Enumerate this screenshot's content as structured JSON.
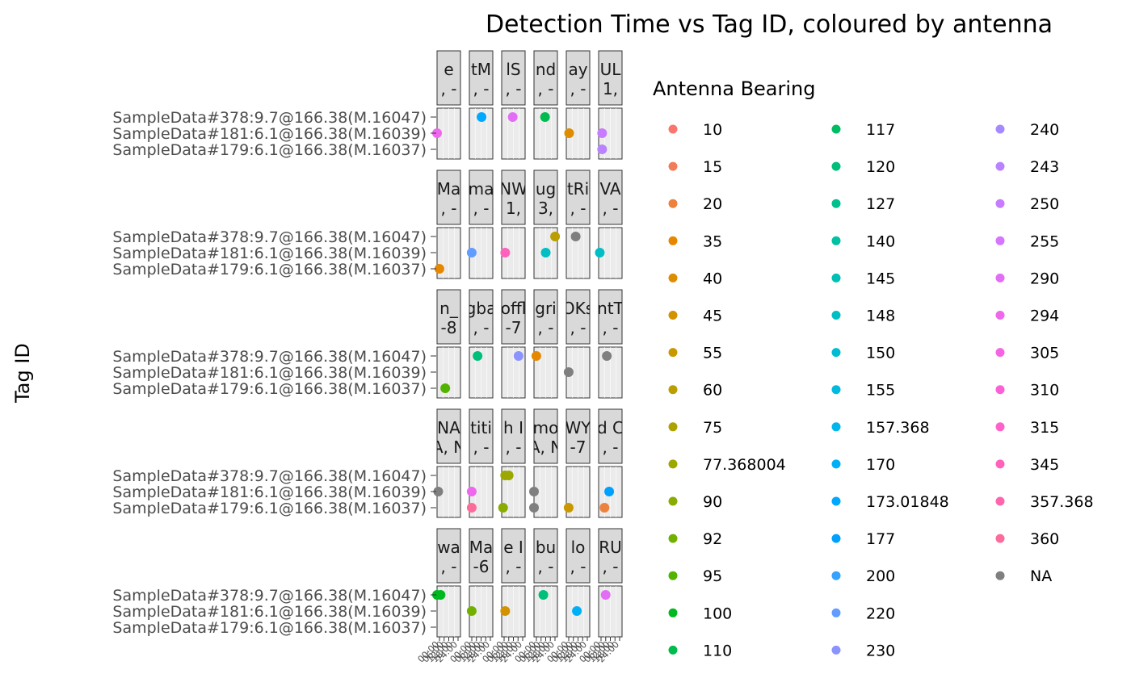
{
  "chart_data": {
    "type": "scatter",
    "title": "Detection Time vs Tag ID, coloured by antenna",
    "xlabel": "",
    "ylabel": "Tag ID",
    "y_categories": [
      "SampleData#179:6.1@166.38(M.16037)",
      "SampleData#181:6.1@166.38(M.16039)",
      "SampleData#378:9.7@166.38(M.16047)"
    ],
    "x_tick_labels": [
      "00:00",
      "06:00",
      "12:00",
      "18:00",
      "24:00"
    ],
    "grid": false,
    "legend": {
      "title": "Antenna Bearing",
      "placement": "right",
      "entries": [
        {
          "label": "10",
          "color": "#F8766D"
        },
        {
          "label": "15",
          "color": "#F37B59"
        },
        {
          "label": "20",
          "color": "#ED813E"
        },
        {
          "label": "35",
          "color": "#E58700"
        },
        {
          "label": "40",
          "color": "#DE8C00"
        },
        {
          "label": "45",
          "color": "#D39200"
        },
        {
          "label": "55",
          "color": "#C99800"
        },
        {
          "label": "60",
          "color": "#BB9D00"
        },
        {
          "label": "75",
          "color": "#ADA200"
        },
        {
          "label": "77.368004",
          "color": "#9CA700"
        },
        {
          "label": "90",
          "color": "#8AAB00"
        },
        {
          "label": "92",
          "color": "#72B000"
        },
        {
          "label": "95",
          "color": "#53B400"
        },
        {
          "label": "100",
          "color": "#00B81F"
        },
        {
          "label": "110",
          "color": "#00BB4E"
        },
        {
          "label": "117",
          "color": "#00BD64"
        },
        {
          "label": "120",
          "color": "#00BF7A"
        },
        {
          "label": "127",
          "color": "#00C08D"
        },
        {
          "label": "140",
          "color": "#00C1A2"
        },
        {
          "label": "145",
          "color": "#00C0B3"
        },
        {
          "label": "148",
          "color": "#00BFC4"
        },
        {
          "label": "150",
          "color": "#00BDD2"
        },
        {
          "label": "155",
          "color": "#00BAE0"
        },
        {
          "label": "157.368",
          "color": "#00B6EB"
        },
        {
          "label": "170",
          "color": "#00B0F6"
        },
        {
          "label": "173.01848",
          "color": "#00A8FF"
        },
        {
          "label": "177",
          "color": "#00A0FF"
        },
        {
          "label": "200",
          "color": "#35A2FF"
        },
        {
          "label": "220",
          "color": "#619CFF"
        },
        {
          "label": "230",
          "color": "#8B93FF"
        },
        {
          "label": "240",
          "color": "#A58AFF"
        },
        {
          "label": "243",
          "color": "#B983FF"
        },
        {
          "label": "250",
          "color": "#C77CFF"
        },
        {
          "label": "255",
          "color": "#D675FE"
        },
        {
          "label": "290",
          "color": "#E36EF6"
        },
        {
          "label": "294",
          "color": "#ED68ED"
        },
        {
          "label": "305",
          "color": "#F564E3"
        },
        {
          "label": "310",
          "color": "#FB61D7"
        },
        {
          "label": "315",
          "color": "#FF61C9"
        },
        {
          "label": "345",
          "color": "#FF62BC"
        },
        {
          "label": "357.368",
          "color": "#FF65AE"
        },
        {
          "label": "360",
          "color": "#FC6C9A"
        },
        {
          "label": "NA",
          "color": "#7F7F7F"
        }
      ]
    },
    "facets": [
      {
        "strip": [
          "e",
          ", -"
        ],
        "points": [
          {
            "x": 0.0,
            "tag": 1,
            "antenna": "294"
          }
        ]
      },
      {
        "strip": [
          "tM",
          ", -"
        ],
        "points": [
          {
            "x": 0.52,
            "tag": 2,
            "antenna": "173.01848"
          }
        ]
      },
      {
        "strip": [
          "lS",
          ", -"
        ],
        "points": [
          {
            "x": 0.47,
            "tag": 2,
            "antenna": "290"
          }
        ]
      },
      {
        "strip": [
          "nd",
          ", -"
        ],
        "points": [
          {
            "x": 0.47,
            "tag": 2,
            "antenna": "110"
          }
        ]
      },
      {
        "strip": [
          "ay",
          ", -"
        ],
        "points": [
          {
            "x": 0.12,
            "tag": 1,
            "antenna": "40"
          }
        ]
      },
      {
        "strip": [
          "UL",
          "1,"
        ],
        "points": [
          {
            "x": 0.15,
            "tag": 1,
            "antenna": "250"
          },
          {
            "x": 0.15,
            "tag": 0,
            "antenna": "243"
          }
        ]
      },
      {
        "strip": [
          "Ma",
          ", -"
        ],
        "points": [
          {
            "x": 0.1,
            "tag": 0,
            "antenna": "35"
          }
        ]
      },
      {
        "strip": [
          "ma",
          ", -"
        ],
        "points": [
          {
            "x": 0.1,
            "tag": 1,
            "antenna": "220"
          }
        ]
      },
      {
        "strip": [
          "NW",
          "1,"
        ],
        "points": [
          {
            "x": 0.15,
            "tag": 1,
            "antenna": "345"
          }
        ]
      },
      {
        "strip": [
          "ug",
          "3,"
        ],
        "points": [
          {
            "x": 0.5,
            "tag": 1,
            "antenna": "148"
          },
          {
            "x": 0.9,
            "tag": 2,
            "antenna": "60"
          }
        ]
      },
      {
        "strip": [
          "tRi",
          ", -"
        ],
        "points": [
          {
            "x": 0.4,
            "tag": 2,
            "antenna": "NA"
          }
        ]
      },
      {
        "strip": [
          "VA",
          ", -"
        ],
        "points": [
          {
            "x": 0.05,
            "tag": 1,
            "antenna": "148"
          }
        ]
      },
      {
        "strip": [
          "n_",
          "-8"
        ],
        "points": [
          {
            "x": 0.35,
            "tag": 0,
            "antenna": "95"
          }
        ]
      },
      {
        "strip": [
          "gba",
          ", -"
        ],
        "points": [
          {
            "x": 0.35,
            "tag": 2,
            "antenna": "120"
          }
        ]
      },
      {
        "strip": [
          "offl",
          "-7"
        ],
        "points": [
          {
            "x": 0.72,
            "tag": 2,
            "antenna": "230"
          }
        ]
      },
      {
        "strip": [
          "gri",
          ", -"
        ],
        "points": [
          {
            "x": 0.1,
            "tag": 2,
            "antenna": "35"
          }
        ]
      },
      {
        "strip": [
          "OKs",
          ", -"
        ],
        "points": [
          {
            "x": 0.1,
            "tag": 1,
            "antenna": "NA"
          }
        ]
      },
      {
        "strip": [
          "ntT",
          ", -"
        ],
        "points": [
          {
            "x": 0.35,
            "tag": 2,
            "antenna": "NA"
          }
        ]
      },
      {
        "strip": [
          "NA",
          "A, N"
        ],
        "points": [
          {
            "x": 0.05,
            "tag": 1,
            "antenna": "NA"
          }
        ]
      },
      {
        "strip": [
          "titi",
          ", -"
        ],
        "points": [
          {
            "x": 0.1,
            "tag": 1,
            "antenna": "294"
          },
          {
            "x": 0.1,
            "tag": 0,
            "antenna": "360"
          }
        ]
      },
      {
        "strip": [
          "h I",
          ", -"
        ],
        "points": [
          {
            "x": 0.15,
            "tag": 2,
            "antenna": "77.368004"
          },
          {
            "x": 0.3,
            "tag": 2,
            "antenna": "77.368004"
          },
          {
            "x": 0.06,
            "tag": 0,
            "antenna": "90"
          }
        ]
      },
      {
        "strip": [
          "mo",
          "A, N"
        ],
        "points": [
          {
            "x": 0.0,
            "tag": 1,
            "antenna": "NA"
          },
          {
            "x": 0.0,
            "tag": 0,
            "antenna": "NA"
          }
        ]
      },
      {
        "strip": [
          "WY",
          "-7"
        ],
        "points": [
          {
            "x": 0.1,
            "tag": 0,
            "antenna": "55"
          }
        ]
      },
      {
        "strip": [
          "d C",
          ", -"
        ],
        "points": [
          {
            "x": 0.45,
            "tag": 1,
            "antenna": "177"
          },
          {
            "x": 0.25,
            "tag": 0,
            "antenna": "20"
          }
        ]
      },
      {
        "strip": [
          "wa",
          ", -"
        ],
        "points": [
          {
            "x": 0.0,
            "tag": 2,
            "antenna": "100"
          },
          {
            "x": 0.15,
            "tag": 2,
            "antenna": "100"
          }
        ]
      },
      {
        "strip": [
          "Ma",
          "-6"
        ],
        "points": [
          {
            "x": 0.1,
            "tag": 1,
            "antenna": "92"
          }
        ]
      },
      {
        "strip": [
          "e I",
          ", -"
        ],
        "points": [
          {
            "x": 0.15,
            "tag": 1,
            "antenna": "45"
          }
        ]
      },
      {
        "strip": [
          "bu",
          ", -"
        ],
        "points": [
          {
            "x": 0.4,
            "tag": 2,
            "antenna": "120"
          }
        ]
      },
      {
        "strip": [
          "lo",
          ", -"
        ],
        "points": [
          {
            "x": 0.45,
            "tag": 1,
            "antenna": "170"
          }
        ]
      },
      {
        "strip": [
          "RU",
          ", -"
        ],
        "points": [
          {
            "x": 0.3,
            "tag": 2,
            "antenna": "290"
          }
        ]
      }
    ]
  }
}
